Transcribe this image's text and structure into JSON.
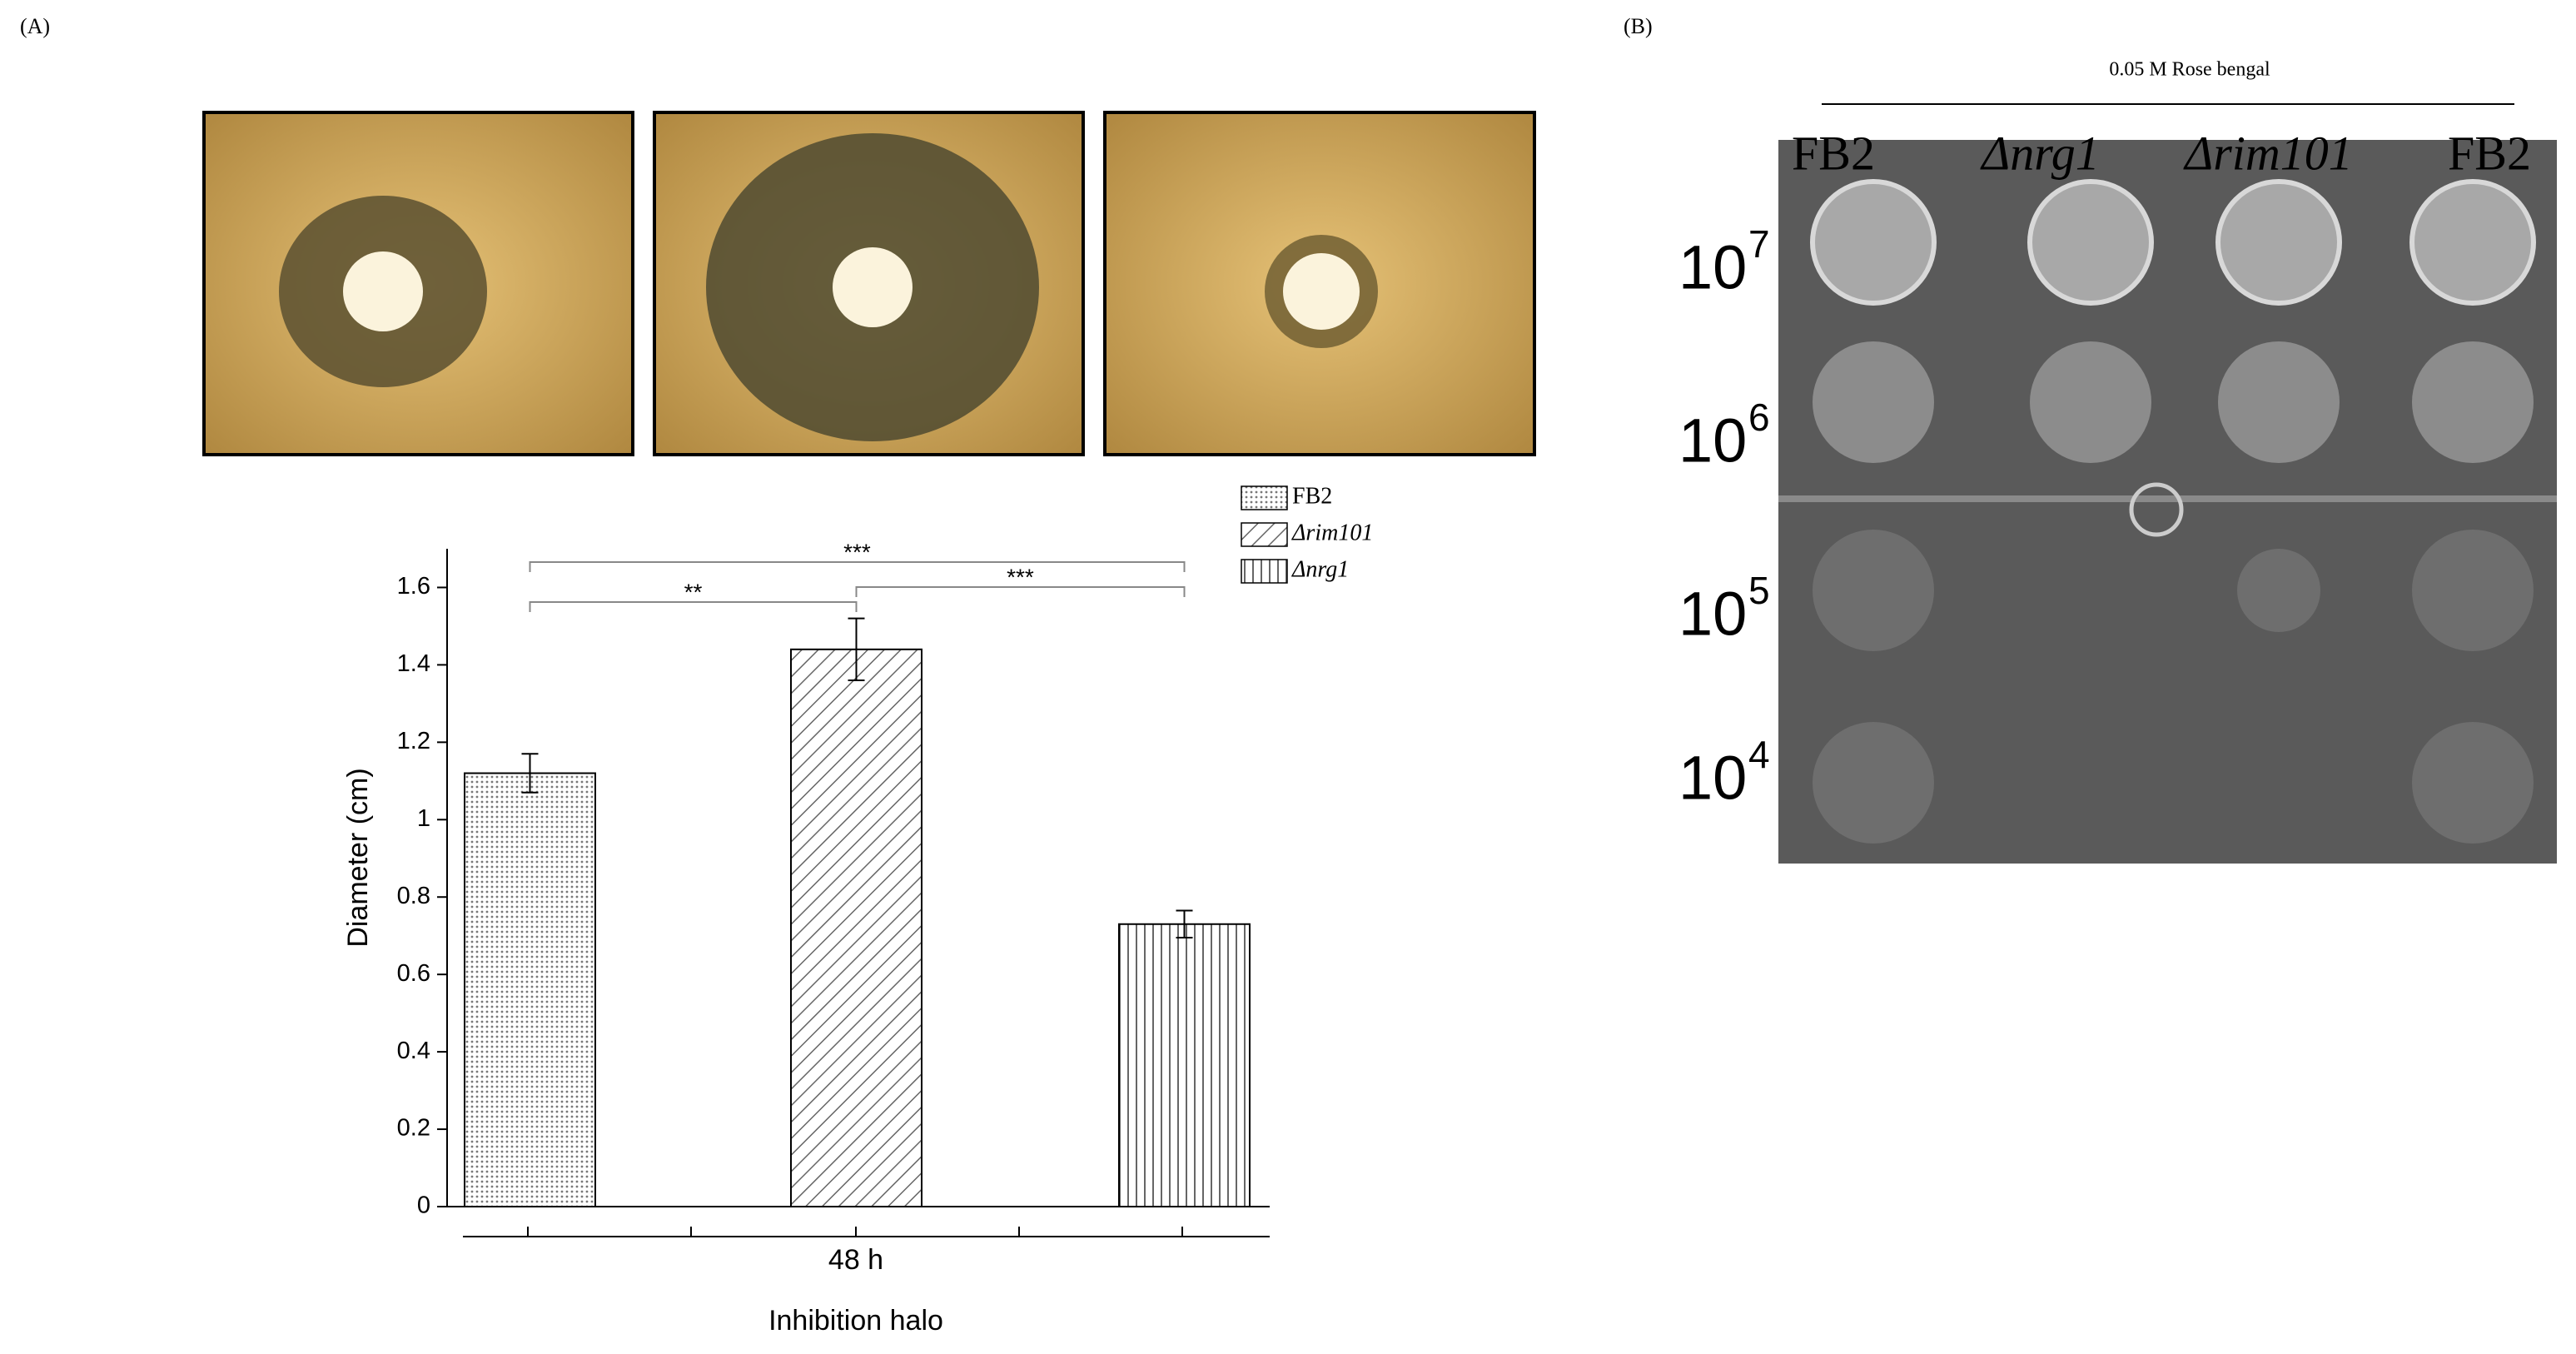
{
  "panel_labels": [
    "(A)",
    "(B)"
  ],
  "chart_data": {
    "type": "bar",
    "ylabel": "Diameter (cm)",
    "xlabel": "Inhibition halo",
    "categories": [
      "48 h"
    ],
    "series": [
      {
        "name": "FB2",
        "color": "#555555",
        "hatch": "dots",
        "values": [
          1.12
        ],
        "errors": [
          0.05
        ]
      },
      {
        "name": "Δrim101",
        "color": "#555555",
        "hatch": "diagonal",
        "values": [
          1.44
        ],
        "errors": [
          0.08
        ]
      },
      {
        "name": "Δnrg1",
        "color": "#555555",
        "hatch": "vertical",
        "values": [
          0.73
        ],
        "errors": [
          0.035
        ]
      }
    ],
    "annotations": [
      "***",
      "**",
      "***"
    ],
    "ylim": [
      0,
      1.7
    ],
    "yticks": [
      0,
      0.2,
      0.4,
      0.6,
      0.8,
      1,
      1.2,
      1.4,
      1.6
    ],
    "legend": "top-right"
  },
  "panel_b": {
    "title": "0.05 M Rose bengal",
    "columns": [
      "FB2",
      "Δnrg1",
      "Δrim101",
      "FB2"
    ],
    "rows": [
      {
        "base": "10",
        "exponent": "7"
      },
      {
        "base": "10",
        "exponent": "6"
      },
      {
        "base": "10",
        "exponent": "5"
      },
      {
        "base": "10",
        "exponent": "4"
      }
    ]
  }
}
